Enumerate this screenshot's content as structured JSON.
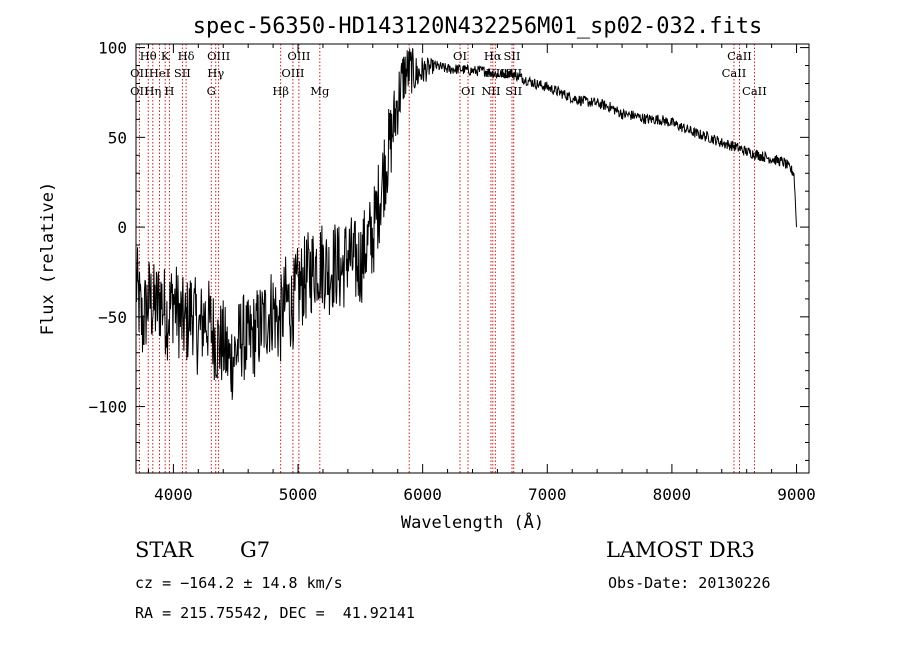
{
  "chart_data": {
    "type": "line",
    "title": "spec-56350-HD143120N432256M01_sp02-032.fits",
    "xlabel": "Wavelength (Å)",
    "ylabel": "Flux (relative)",
    "xlim": [
      3700,
      9100
    ],
    "ylim": [
      -137,
      102
    ],
    "x_ticks": [
      4000,
      5000,
      6000,
      7000,
      8000,
      9000
    ],
    "y_ticks": [
      -100,
      -50,
      0,
      50,
      100
    ],
    "series": [
      {
        "name": "flux",
        "x": [
          3700,
          3750,
          3800,
          3850,
          3900,
          3950,
          4000,
          4050,
          4100,
          4150,
          4200,
          4250,
          4300,
          4350,
          4400,
          4450,
          4500,
          4550,
          4600,
          4650,
          4700,
          4750,
          4800,
          4850,
          4900,
          4950,
          5000,
          5050,
          5100,
          5150,
          5200,
          5250,
          5300,
          5350,
          5400,
          5450,
          5500,
          5550,
          5600,
          5650,
          5700,
          5750,
          5800,
          5850,
          5900,
          5950,
          6000,
          6100,
          6200,
          6300,
          6400,
          6500,
          6600,
          6700,
          6800,
          6900,
          7000,
          7100,
          7200,
          7300,
          7400,
          7500,
          7600,
          7700,
          7800,
          7900,
          8000,
          8100,
          8200,
          8300,
          8400,
          8500,
          8600,
          8700,
          8800,
          8900,
          8980,
          9000
        ],
        "y": [
          -30,
          -55,
          -40,
          -45,
          -40,
          -50,
          -40,
          -50,
          -55,
          -45,
          -60,
          -50,
          -55,
          -65,
          -65,
          -75,
          -70,
          -60,
          -65,
          -60,
          -55,
          -50,
          -45,
          -55,
          -40,
          -45,
          -35,
          -30,
          -25,
          -20,
          -20,
          -25,
          -20,
          -25,
          -15,
          -20,
          -20,
          -10,
          -5,
          15,
          35,
          50,
          70,
          85,
          88,
          85,
          87,
          90,
          88,
          88,
          87,
          87,
          85,
          86,
          83,
          80,
          78,
          75,
          72,
          70,
          69,
          67,
          63,
          62,
          60,
          60,
          58,
          55,
          52,
          50,
          47,
          45,
          42,
          40,
          38,
          36,
          30,
          0
        ],
        "noise_amplitude_blue": 25,
        "noise_amplitude_red": 3
      }
    ],
    "line_marks": [
      {
        "label": "Hθ",
        "wavelength": 3798,
        "row": 0
      },
      {
        "label": "K",
        "wavelength": 3934,
        "row": 0
      },
      {
        "label": "Hδ",
        "wavelength": 4102,
        "row": 0
      },
      {
        "label": "OIII",
        "wavelength": 4363,
        "row": 0
      },
      {
        "label": "OIII",
        "wavelength": 5007,
        "row": 0
      },
      {
        "label": "OI",
        "wavelength": 6300,
        "row": 0
      },
      {
        "label": "Hα",
        "wavelength": 6563,
        "row": 0
      },
      {
        "label": "SII",
        "wavelength": 6717,
        "row": 0
      },
      {
        "label": "CaII",
        "wavelength": 8542,
        "row": 0
      },
      {
        "label": "OII",
        "wavelength": 3727,
        "row": 1
      },
      {
        "label": "HeI",
        "wavelength": 3889,
        "row": 1
      },
      {
        "label": "SII",
        "wavelength": 4072,
        "row": 1
      },
      {
        "label": "Hγ",
        "wavelength": 4340,
        "row": 1
      },
      {
        "label": "OIII",
        "wavelength": 4959,
        "row": 1
      },
      {
        "label": "NII",
        "wavelength": 6583,
        "row": 1
      },
      {
        "label": "SII",
        "wavelength": 6731,
        "row": 1
      },
      {
        "label": "CaII",
        "wavelength": 8498,
        "row": 1
      },
      {
        "label": "OII",
        "wavelength": 3727,
        "row": 2
      },
      {
        "label": "Hη",
        "wavelength": 3835,
        "row": 2
      },
      {
        "label": "H",
        "wavelength": 3968,
        "row": 2
      },
      {
        "label": "G",
        "wavelength": 4304,
        "row": 2
      },
      {
        "label": "Hβ",
        "wavelength": 4861,
        "row": 2
      },
      {
        "label": "Mg",
        "wavelength": 5175,
        "row": 2
      },
      {
        "label": "OI",
        "wavelength": 6364,
        "row": 2
      },
      {
        "label": "NII",
        "wavelength": 6548,
        "row": 2
      },
      {
        "label": "SII",
        "wavelength": 6731,
        "row": 2
      },
      {
        "label": "CaII",
        "wavelength": 8662,
        "row": 2
      }
    ],
    "extra_line_wavelengths": [
      3889,
      5892,
      6300,
      6717
    ],
    "colors": {
      "axis": "#000000",
      "spectrum": "#000000",
      "line_marker": "#cc0000",
      "background": "#ffffff"
    }
  },
  "info": {
    "object_class": "STAR",
    "subclass": "G7",
    "survey": "LAMOST DR3",
    "redshift": "cz = −164.2 ± 14.8 km/s",
    "obs_date": "Obs-Date: 20130226",
    "coordinates": "RA = 215.75542, DEC =  41.92141"
  }
}
